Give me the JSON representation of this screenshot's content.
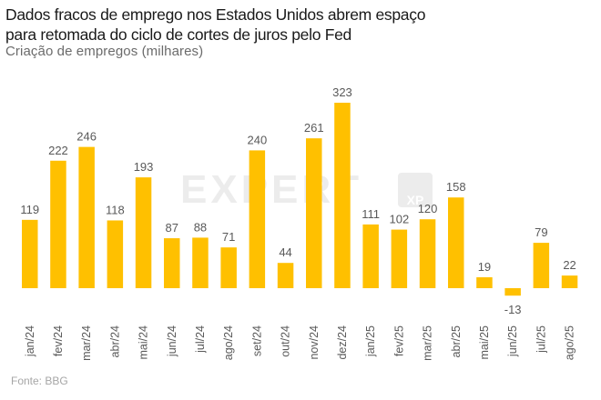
{
  "header": {
    "title_line1": "Dados fracos de emprego nos Estados Unidos abrem espaço",
    "title_line2": "para retomada do ciclo de cortes de juros pelo Fed",
    "subtitle": "Criação de empregos (milhares)"
  },
  "footer": {
    "source": "Fonte: BBG"
  },
  "watermark": {
    "text": "EXPERT",
    "badge": "XP"
  },
  "colors": {
    "bar": "#FFC000",
    "value_label": "#595959",
    "axis_label": "#595959"
  },
  "chart_data": {
    "type": "bar",
    "title": "Dados fracos de emprego nos Estados Unidos abrem espaço para retomada do ciclo de cortes de juros pelo Fed",
    "subtitle": "Criação de empregos (milhares)",
    "xlabel": "",
    "ylabel": "Criação de empregos (milhares)",
    "categories": [
      "jan/24",
      "fev/24",
      "mar/24",
      "abr/24",
      "mai/24",
      "jun/24",
      "jul/24",
      "ago/24",
      "set/24",
      "out/24",
      "nov/24",
      "dez/24",
      "jan/25",
      "fev/25",
      "mar/25",
      "abr/25",
      "mai/25",
      "jun/25",
      "jul/25",
      "ago/25"
    ],
    "values": [
      119,
      222,
      246,
      118,
      193,
      87,
      88,
      71,
      240,
      44,
      261,
      323,
      111,
      102,
      120,
      158,
      19,
      -13,
      79,
      22
    ],
    "ylim": [
      -13,
      323
    ],
    "grid": false,
    "legend": "none",
    "data_labels": true
  }
}
